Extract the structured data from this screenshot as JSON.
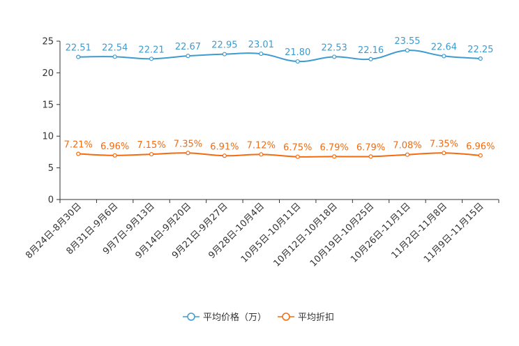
{
  "chart_data": {
    "type": "line",
    "title": "",
    "xlabel": "",
    "ylabel": "",
    "ylim": [
      0,
      25
    ],
    "yticks": [
      0,
      5,
      10,
      15,
      20,
      25
    ],
    "categories": [
      "8月24日-8月30日",
      "8月31日-9月6日",
      "9月7日-9月13日",
      "9月14日-9月20日",
      "9月21日-9月27日",
      "9月28日-10月4日",
      "10月5日-10月11日",
      "10月12日-10月18日",
      "10月19日-10月25日",
      "10月26日-11月1日",
      "11月2日-11月8日",
      "11月9日-11月15日"
    ],
    "series": [
      {
        "name": "平均价格（万）",
        "color": "#3e9bcf",
        "values": [
          22.51,
          22.54,
          22.21,
          22.67,
          22.95,
          23.01,
          21.8,
          22.53,
          22.16,
          23.55,
          22.64,
          22.25
        ],
        "labels": [
          "22.51",
          "22.54",
          "22.21",
          "22.67",
          "22.95",
          "23.01",
          "21.80",
          "22.53",
          "22.16",
          "23.55",
          "22.64",
          "22.25"
        ]
      },
      {
        "name": "平均折扣",
        "color": "#f26b0f",
        "values": [
          7.21,
          6.96,
          7.15,
          7.35,
          6.91,
          7.12,
          6.75,
          6.79,
          6.79,
          7.08,
          7.35,
          6.96
        ],
        "labels": [
          "7.21%",
          "6.96%",
          "7.15%",
          "7.35%",
          "6.91%",
          "7.12%",
          "6.75%",
          "6.79%",
          "6.79%",
          "7.08%",
          "7.35%",
          "6.96%"
        ]
      }
    ],
    "legend_position": "bottom-center",
    "grid": false
  }
}
